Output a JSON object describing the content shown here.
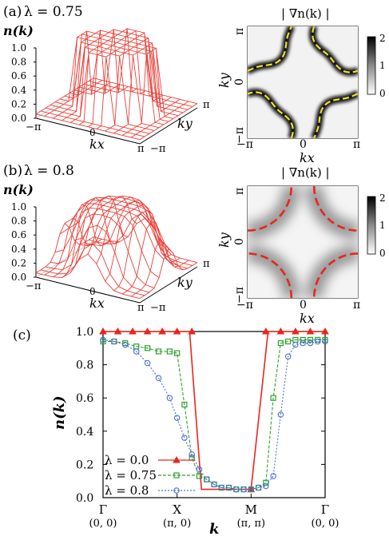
{
  "panel_a": {
    "label": "(a)",
    "lambda_text": "λ = 0.75",
    "surface_ylabel": "n(k)",
    "z_ticks": [
      "0.0",
      "0.2",
      "0.4",
      "0.6",
      "0.8",
      "1.0"
    ],
    "kx_ticks": [
      "−π",
      "0",
      "π"
    ],
    "ky_ticks": [
      "−π",
      "π"
    ],
    "kx_label": "kx",
    "ky_label": "ky",
    "map_title": "| ∇n(k) |",
    "map_x_ticks": [
      "−π",
      "0",
      "π"
    ],
    "map_y_ticks": [
      "−π",
      "0",
      "π"
    ],
    "map_xlabel": "kx",
    "map_ylabel": "ky",
    "colorbar_ticks": [
      "0",
      "1",
      "2"
    ],
    "fermi_line_color": "#f0e030",
    "mesh_color": "#e8413a"
  },
  "panel_b": {
    "label": "(b)",
    "lambda_text": "λ = 0.8",
    "surface_ylabel": "n(k)",
    "z_ticks": [
      "0.0",
      "0.2",
      "0.4",
      "0.6",
      "0.8",
      "1.0"
    ],
    "kx_ticks": [
      "−π",
      "0",
      "π"
    ],
    "ky_ticks": [
      "−π",
      "π"
    ],
    "kx_label": "kx",
    "ky_label": "ky",
    "map_title": "| ∇n(k) |",
    "map_x_ticks": [
      "−π",
      "0",
      "π"
    ],
    "map_y_ticks": [
      "−π",
      "0",
      "π"
    ],
    "map_xlabel": "kx",
    "map_ylabel": "ky",
    "colorbar_ticks": [
      "0",
      "1",
      "2"
    ],
    "fermi_line_color": "#e8261e",
    "mesh_color": "#e8413a"
  },
  "chart_data": {
    "type": "line",
    "label": "(c)",
    "xlabel": "k",
    "ylabel": "n(k)",
    "ylim": [
      0,
      1
    ],
    "y_ticks": [
      "0.0",
      "0.2",
      "0.4",
      "0.6",
      "0.8",
      "1.0"
    ],
    "x_ticks": [
      {
        "pos": 0,
        "label": "Γ",
        "sub": "(0, 0)"
      },
      {
        "pos": 10,
        "label": "X",
        "sub": "(π, 0)"
      },
      {
        "pos": 20,
        "label": "M",
        "sub": "(π, π)"
      },
      {
        "pos": 30,
        "label": "Γ",
        "sub": "(0, 0)"
      }
    ],
    "xlim": [
      0,
      30
    ],
    "series": [
      {
        "name": "λ = 0.0",
        "color": "#e8261e",
        "marker": "triangle",
        "dash": "",
        "x": [
          0,
          2,
          4,
          6,
          8,
          10,
          12,
          20,
          22,
          24,
          26,
          28,
          30
        ],
        "y": [
          1,
          1,
          1,
          1,
          1,
          1,
          1,
          0.05,
          1,
          1,
          1,
          1,
          1
        ],
        "path_x": [
          0,
          11.7,
          13.3,
          20,
          22.3,
          30
        ],
        "path_y": [
          1,
          1,
          0.05,
          0.05,
          1,
          1
        ]
      },
      {
        "name": "λ = 0.75",
        "color": "#2ea02e",
        "marker": "square",
        "dash": "4,2",
        "x": [
          0,
          1.5,
          3,
          4.5,
          6,
          7.5,
          9,
          10,
          11,
          12,
          13,
          14,
          15,
          16,
          17,
          18,
          19,
          20,
          21,
          22,
          23,
          24,
          25,
          26,
          27,
          28,
          29,
          30
        ],
        "y": [
          0.94,
          0.94,
          0.93,
          0.91,
          0.9,
          0.88,
          0.88,
          0.87,
          0.56,
          0.24,
          0.13,
          0.11,
          0.08,
          0.06,
          0.06,
          0.05,
          0.05,
          0.05,
          0.06,
          0.09,
          0.6,
          0.93,
          0.94,
          0.95,
          0.95,
          0.95,
          0.95,
          0.95
        ]
      },
      {
        "name": "λ = 0.8",
        "color": "#4a6fd6",
        "marker": "circle",
        "dash": "2,2",
        "x": [
          0,
          1.5,
          3,
          4.5,
          6,
          7.5,
          9,
          10,
          11,
          12,
          13,
          14,
          15,
          16,
          17,
          18,
          19,
          20,
          21,
          22,
          23,
          24,
          25,
          26,
          27,
          28,
          29,
          30
        ],
        "y": [
          0.95,
          0.94,
          0.92,
          0.88,
          0.81,
          0.72,
          0.6,
          0.48,
          0.36,
          0.26,
          0.17,
          0.11,
          0.08,
          0.06,
          0.06,
          0.05,
          0.05,
          0.05,
          0.06,
          0.07,
          0.13,
          0.5,
          0.85,
          0.92,
          0.93,
          0.93,
          0.94,
          0.94
        ]
      }
    ]
  }
}
